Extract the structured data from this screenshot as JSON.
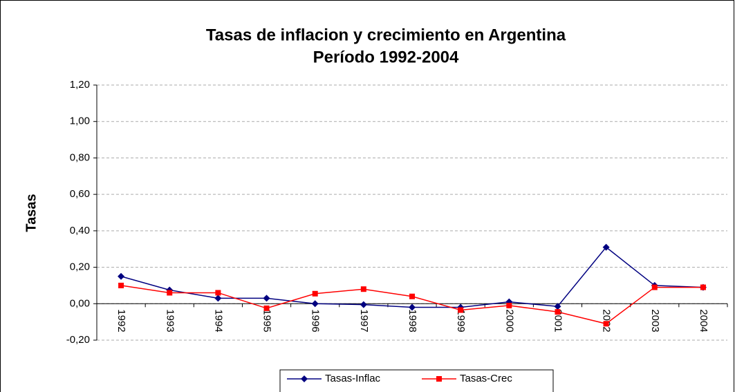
{
  "chart_data": {
    "type": "line",
    "title": [
      "Tasas de inflacion y crecimiento en Argentina",
      "Período 1992-2004"
    ],
    "y_label": "Tasas",
    "categories": [
      "1992",
      "1993",
      "1994",
      "1995",
      "1996",
      "1997",
      "1998",
      "1999",
      "2000",
      "2001",
      "2002",
      "2003",
      "2004"
    ],
    "series": [
      {
        "name": "Tasas-Inflac",
        "color": "#000080",
        "marker": "diamond",
        "values": [
          0.15,
          0.075,
          0.03,
          0.03,
          0.0,
          -0.005,
          -0.02,
          -0.02,
          0.01,
          -0.015,
          0.31,
          0.1,
          0.09
        ]
      },
      {
        "name": "Tasas-Crec",
        "color": "#ff0000",
        "marker": "square",
        "values": [
          0.1,
          0.06,
          0.06,
          -0.025,
          0.055,
          0.08,
          0.04,
          -0.035,
          -0.01,
          -0.045,
          -0.11,
          0.09,
          0.09
        ]
      }
    ],
    "ylim": [
      -0.2,
      1.2
    ],
    "yticks": [
      {
        "value": -0.2,
        "label": "-0,20"
      },
      {
        "value": 0,
        "label": "0,00"
      },
      {
        "value": 0.2,
        "label": "0,20"
      },
      {
        "value": 0.4,
        "label": "0,40"
      },
      {
        "value": 0.6,
        "label": "0,60"
      },
      {
        "value": 0.8,
        "label": "0,80"
      },
      {
        "value": 1.0,
        "label": "1,00"
      },
      {
        "value": 1.2,
        "label": "1,20"
      }
    ],
    "grid": true,
    "legend": "bottom"
  }
}
